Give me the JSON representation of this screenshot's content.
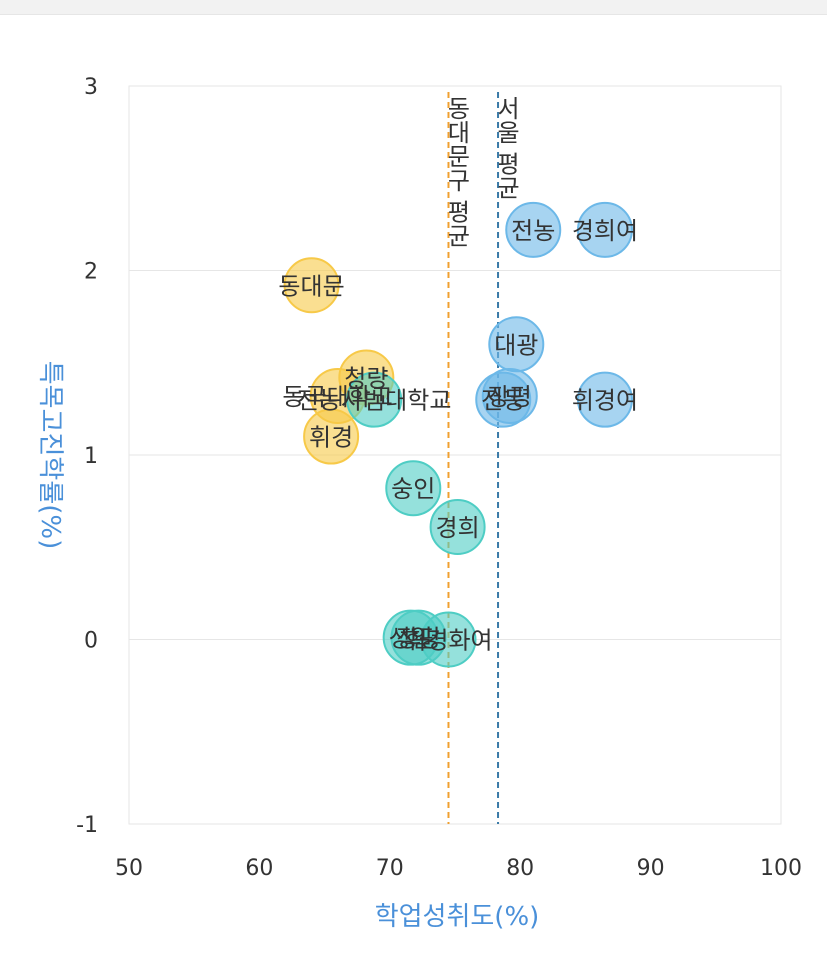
{
  "chart_data": {
    "type": "scatter",
    "title": "",
    "xlabel": "학업성취도(%)",
    "ylabel": "특목고진학률(%)",
    "xlim": [
      50,
      100
    ],
    "ylim": [
      -1,
      3
    ],
    "xticks": [
      "50",
      "60",
      "70",
      "80",
      "90",
      "100"
    ],
    "yticks": [
      "-1",
      "0",
      "1",
      "2",
      "3"
    ],
    "grid": true,
    "reference_lines": [
      {
        "label": "동대문구 평균",
        "x": 74.5,
        "color": "#f0a030"
      },
      {
        "label": "서울 평균",
        "x": 78.3,
        "color": "#3a7aa8"
      }
    ],
    "series": [
      {
        "color": "#f7c948",
        "points": [
          {
            "label": "동대문",
            "x": 64.0,
            "y": 1.92
          },
          {
            "label": "청량",
            "x": 68.2,
            "y": 1.42
          },
          {
            "label": "동국대학교",
            "x": 66.0,
            "y": 1.32
          },
          {
            "label": "휘경",
            "x": 65.5,
            "y": 1.1
          }
        ]
      },
      {
        "color": "#4ecdc4",
        "points": [
          {
            "label": "전농사범대학교",
            "x": 68.8,
            "y": 1.3
          },
          {
            "label": "숭인",
            "x": 71.8,
            "y": 0.82
          },
          {
            "label": "경희",
            "x": 75.2,
            "y": 0.61
          },
          {
            "label": "장평",
            "x": 72.2,
            "y": 0.01
          },
          {
            "label": "성일",
            "x": 71.6,
            "y": 0.01
          },
          {
            "label": "휘경화여",
            "x": 74.5,
            "y": 0.0
          }
        ]
      },
      {
        "color": "#6cb8e8",
        "points": [
          {
            "label": "전농",
            "x": 81.0,
            "y": 2.22
          },
          {
            "label": "경희여",
            "x": 86.5,
            "y": 2.22
          },
          {
            "label": "대광",
            "x": 79.7,
            "y": 1.6
          },
          {
            "label": "휘경여",
            "x": 86.5,
            "y": 1.3
          },
          {
            "label": "장평",
            "x": 79.2,
            "y": 1.32
          },
          {
            "label": "전동",
            "x": 78.7,
            "y": 1.3
          }
        ]
      }
    ]
  }
}
